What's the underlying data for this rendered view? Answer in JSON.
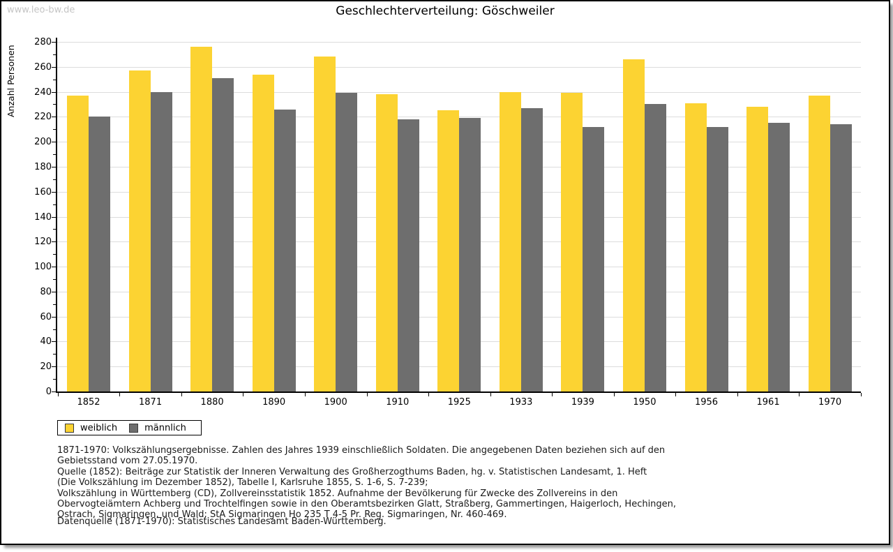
{
  "watermark": "www.leo-bw.de",
  "title": "Geschlechterverteilung: Göschweiler",
  "y_axis_title": "Anzahl Personen",
  "legend": [
    {
      "label": "weiblich",
      "color": "#FCD332"
    },
    {
      "label": "männlich",
      "color": "#6E6E6E"
    }
  ],
  "chart_data": {
    "type": "bar",
    "title": "Geschlechterverteilung: Göschweiler",
    "ylabel": "Anzahl Personen",
    "xlabel": "",
    "categories": [
      "1852",
      "1871",
      "1880",
      "1890",
      "1900",
      "1910",
      "1925",
      "1933",
      "1939",
      "1950",
      "1956",
      "1961",
      "1970"
    ],
    "series": [
      {
        "name": "weiblich",
        "color": "#FCD332",
        "values": [
          237,
          257,
          276,
          254,
          268,
          238,
          225,
          240,
          239,
          266,
          231,
          228,
          237
        ]
      },
      {
        "name": "männlich",
        "color": "#6E6E6E",
        "values": [
          220,
          240,
          251,
          226,
          239,
          218,
          219,
          227,
          212,
          230,
          212,
          215,
          214
        ]
      }
    ],
    "ylim": [
      0,
      280
    ],
    "y_step": 20,
    "y_minor_step": 10,
    "grid": true,
    "grid_color": "#DCDCDC",
    "legend_position": "bottom-left"
  },
  "footnotes": [
    "1871-1970: Volkszählungsergebnisse. Zahlen des Jahres 1939 einschließlich Soldaten. Die angegebenen Daten beziehen sich auf den",
    "Gebietsstand vom 27.05.1970.",
    "Quelle (1852): Beiträge zur Statistik der Inneren Verwaltung des Großherzogthums Baden, hg. v. Statistischen Landesamt, 1. Heft",
    "(Die Volkszählung im Dezember 1852), Tabelle I, Karlsruhe 1855, S. 1-6, S. 7-239;",
    "Volkszählung in Württemberg (CD), Zollvereinsstatistik 1852. Aufnahme der Bevölkerung für Zwecke des Zollvereins in den",
    "Obervogteiämtern Achberg und Trochtelfingen sowie in den Oberamtsbezirken Glatt, Straßberg, Gammertingen, Haigerloch, Hechingen,",
    "Ostrach, Sigmaringen, und Wald; StA Sigmaringen Ho 235 T 4-5 Pr. Reg. Sigmaringen, Nr. 460-469."
  ],
  "datasource": "Datenquelle (1871-1970): Statistisches Landesamt Baden-Württemberg."
}
